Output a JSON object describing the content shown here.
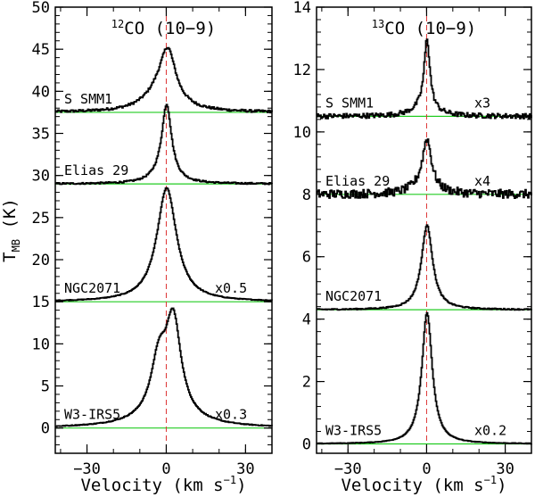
{
  "colors": {
    "baseline": "#22cc22",
    "center_line": "#dd3333",
    "spectrum": "#000000"
  },
  "chart_data": [
    {
      "type": "line",
      "title_prefix": "12",
      "title": "CO (10−9)",
      "xlabel": "Velocity (km s",
      "xlabel_sup": "−1",
      "xlabel_suffix": ")",
      "ylabel_main": "T",
      "ylabel_sub": "MB",
      "ylabel_suffix": " (K)",
      "xlim": [
        -42,
        40
      ],
      "ylim": [
        -3,
        50
      ],
      "xticks": [
        -30,
        0,
        30
      ],
      "xtick_labels": [
        "−30",
        "0",
        "30"
      ],
      "yticks": [
        0,
        5,
        10,
        15,
        20,
        25,
        30,
        35,
        40,
        45,
        50
      ],
      "ytick_labels": [
        "0",
        "5",
        "10",
        "15",
        "20",
        "25",
        "30",
        "35",
        "40",
        "45",
        "50"
      ],
      "center_velocity": 0,
      "series": [
        {
          "name": "S SMM1",
          "scale": "",
          "baseline": 37.5,
          "noise": 0.15,
          "components": [
            {
              "amp": 5.5,
              "center": 0.5,
              "width": 3.5
            },
            {
              "amp": 2.5,
              "center": -2,
              "width": 7
            }
          ]
        },
        {
          "name": "Elias 29",
          "scale": "",
          "baseline": 29,
          "noise": 0.1,
          "components": [
            {
              "amp": 8.5,
              "center": 0,
              "width": 2.2
            },
            {
              "amp": 1,
              "center": -1,
              "width": 5
            }
          ]
        },
        {
          "name": "NGC2071",
          "scale": "x0.5",
          "baseline": 15,
          "noise": 0.05,
          "components": [
            {
              "amp": 13.5,
              "center": 0,
              "width": 4.5
            }
          ]
        },
        {
          "name": "W3-IRS5",
          "scale": "x0.3",
          "baseline": 0,
          "noise": 0.05,
          "components": [
            {
              "amp": 11,
              "center": 2.5,
              "width": 3.5
            },
            {
              "amp": 6,
              "center": -3,
              "width": 3.5
            },
            {
              "amp": 1.5,
              "center": 0,
              "width": 12
            }
          ]
        }
      ]
    },
    {
      "type": "line",
      "title_prefix": "13",
      "title": "CO (10−9)",
      "xlabel": "Velocity (km s",
      "xlabel_sup": "−1",
      "xlabel_suffix": ")",
      "xlim": [
        -42,
        40
      ],
      "ylim": [
        -0.3,
        14
      ],
      "xticks": [
        -30,
        0,
        30
      ],
      "xtick_labels": [
        "−30",
        "0",
        "30"
      ],
      "yticks": [
        0,
        2,
        4,
        6,
        8,
        10,
        12,
        14
      ],
      "ytick_labels": [
        "0",
        "2",
        "4",
        "6",
        "8",
        "10",
        "12",
        "14"
      ],
      "center_velocity": 0,
      "series": [
        {
          "name": "S SMM1",
          "scale": "x3",
          "baseline": 10.5,
          "noise": 0.08,
          "components": [
            {
              "amp": 2.2,
              "center": 0,
              "width": 1.3
            },
            {
              "amp": 0.3,
              "center": -1,
              "width": 5
            }
          ]
        },
        {
          "name": "Elias 29",
          "scale": "x4",
          "baseline": 8,
          "noise": 0.14,
          "components": [
            {
              "amp": 1.5,
              "center": 0,
              "width": 2
            },
            {
              "amp": 0.3,
              "center": -1,
              "width": 5
            }
          ]
        },
        {
          "name": "NGC2071",
          "scale": "",
          "baseline": 4.3,
          "noise": 0.02,
          "components": [
            {
              "amp": 2.7,
              "center": 0,
              "width": 2.6
            }
          ]
        },
        {
          "name": "W3-IRS5",
          "scale": "x0.2",
          "baseline": 0,
          "noise": 0.01,
          "components": [
            {
              "amp": 4.2,
              "center": 0,
              "width": 2.4
            }
          ]
        }
      ]
    }
  ]
}
